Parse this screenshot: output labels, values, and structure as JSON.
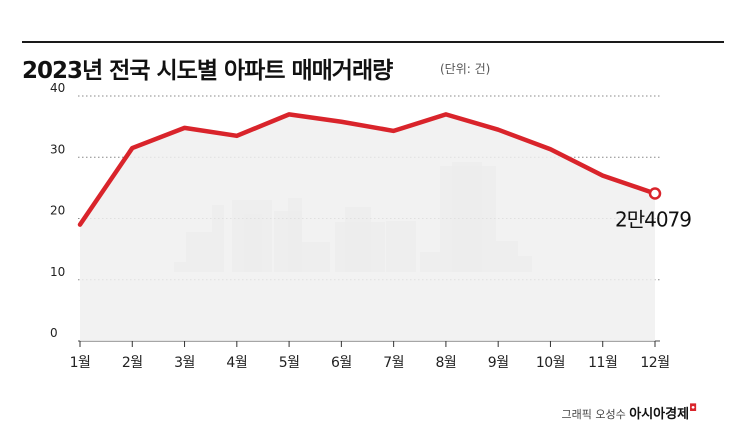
{
  "header": {
    "title": "2023년 전국 시도별 아파트 매매거래량",
    "unit": "(단위: 건)"
  },
  "footer": {
    "credit_prefix": "그래픽 오성수",
    "brand": "아시아경제"
  },
  "colors": {
    "line": "#d9242b",
    "area": "#f0f0f0",
    "grid": "#888888",
    "silhouette": "#cfcfcf"
  },
  "chart_data": {
    "type": "line",
    "title": "2023년 전국 시도별 아파트 매매거래량",
    "unit": "(단위: 건)",
    "categories": [
      "1월",
      "2월",
      "3월",
      "4월",
      "5월",
      "6월",
      "7월",
      "8월",
      "9월",
      "10월",
      "11월",
      "12월"
    ],
    "values": [
      19000,
      31500,
      34800,
      33500,
      37000,
      35800,
      34300,
      37000,
      34500,
      31300,
      27000,
      24079
    ],
    "ylim": [
      0,
      40000
    ],
    "yticks": [
      {
        "value": 0,
        "label": "0"
      },
      {
        "value": 10000,
        "label": "10"
      },
      {
        "value": 20000,
        "label": "20"
      },
      {
        "value": 30000,
        "label": "30"
      },
      {
        "value": 40000,
        "label": "40"
      }
    ],
    "grid": "horizontal-dotted",
    "end_annotation": "2만4079"
  }
}
